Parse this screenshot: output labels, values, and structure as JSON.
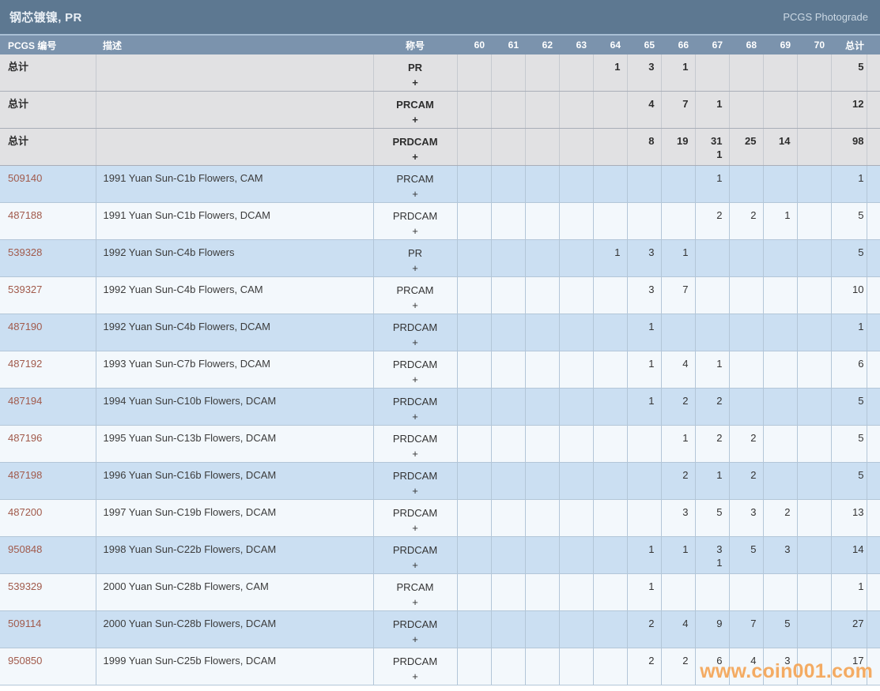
{
  "title_bar": {
    "title": "钢芯镀镍, PR",
    "right_link": "PCGS Photograde"
  },
  "colors": {
    "title_bar_bg": "#5d7891",
    "header_bg": "#7b93ad",
    "row_blue": "#cbdff2",
    "row_white": "#f3f8fc",
    "row_total_gray": "#e1e1e3",
    "pcgs_number_link": "#a15a4b",
    "watermark_orange": "#f3a04e"
  },
  "table": {
    "plus_symbol": "+",
    "headers": {
      "pcgs_no": "PCGS 编号",
      "description": "描述",
      "designation": "称号",
      "grades": [
        "60",
        "61",
        "62",
        "63",
        "64",
        "65",
        "66",
        "67",
        "68",
        "69",
        "70"
      ],
      "total": "总计"
    },
    "rows": [
      {
        "row_style": "total",
        "pcgs_no": "总计",
        "description": "",
        "designation": "PR",
        "grades": [
          "",
          "",
          "",
          "",
          "1",
          "3",
          "1",
          "",
          "",
          "",
          ""
        ],
        "total": "5"
      },
      {
        "row_style": "total",
        "pcgs_no": "总计",
        "description": "",
        "designation": "PRCAM",
        "grades": [
          "",
          "",
          "",
          "",
          "",
          "4",
          "7",
          "1",
          "",
          "",
          ""
        ],
        "total": "12"
      },
      {
        "row_style": "total",
        "pcgs_no": "总计",
        "description": "",
        "designation": "PRDCAM",
        "grades": [
          "",
          "",
          "",
          "",
          "",
          "8",
          "19",
          "31",
          "25",
          "14",
          ""
        ],
        "grades_plus": [
          "",
          "",
          "",
          "",
          "",
          "",
          "",
          "1",
          "",
          "",
          ""
        ],
        "total": "98"
      },
      {
        "row_style": "blue",
        "pcgs_no": "509140",
        "description": "1991 Yuan Sun-C1b Flowers, CAM",
        "designation": "PRCAM",
        "grades": [
          "",
          "",
          "",
          "",
          "",
          "",
          "",
          "1",
          "",
          "",
          ""
        ],
        "total": "1"
      },
      {
        "row_style": "white",
        "pcgs_no": "487188",
        "description": "1991 Yuan Sun-C1b Flowers, DCAM",
        "designation": "PRDCAM",
        "grades": [
          "",
          "",
          "",
          "",
          "",
          "",
          "",
          "2",
          "2",
          "1",
          ""
        ],
        "total": "5"
      },
      {
        "row_style": "blue",
        "pcgs_no": "539328",
        "description": "1992 Yuan Sun-C4b Flowers",
        "designation": "PR",
        "grades": [
          "",
          "",
          "",
          "",
          "1",
          "3",
          "1",
          "",
          "",
          "",
          ""
        ],
        "total": "5"
      },
      {
        "row_style": "white",
        "pcgs_no": "539327",
        "description": "1992 Yuan Sun-C4b Flowers, CAM",
        "designation": "PRCAM",
        "grades": [
          "",
          "",
          "",
          "",
          "",
          "3",
          "7",
          "",
          "",
          "",
          ""
        ],
        "total": "10"
      },
      {
        "row_style": "blue",
        "pcgs_no": "487190",
        "description": "1992 Yuan Sun-C4b Flowers, DCAM",
        "designation": "PRDCAM",
        "grades": [
          "",
          "",
          "",
          "",
          "",
          "1",
          "",
          "",
          "",
          "",
          ""
        ],
        "total": "1"
      },
      {
        "row_style": "white",
        "pcgs_no": "487192",
        "description": "1993 Yuan Sun-C7b Flowers, DCAM",
        "designation": "PRDCAM",
        "grades": [
          "",
          "",
          "",
          "",
          "",
          "1",
          "4",
          "1",
          "",
          "",
          ""
        ],
        "total": "6"
      },
      {
        "row_style": "blue",
        "pcgs_no": "487194",
        "description": "1994 Yuan Sun-C10b Flowers, DCAM",
        "designation": "PRDCAM",
        "grades": [
          "",
          "",
          "",
          "",
          "",
          "1",
          "2",
          "2",
          "",
          "",
          ""
        ],
        "total": "5"
      },
      {
        "row_style": "white",
        "pcgs_no": "487196",
        "description": "1995 Yuan Sun-C13b Flowers, DCAM",
        "designation": "PRDCAM",
        "grades": [
          "",
          "",
          "",
          "",
          "",
          "",
          "1",
          "2",
          "2",
          "",
          ""
        ],
        "total": "5"
      },
      {
        "row_style": "blue",
        "pcgs_no": "487198",
        "description": "1996 Yuan Sun-C16b Flowers, DCAM",
        "designation": "PRDCAM",
        "grades": [
          "",
          "",
          "",
          "",
          "",
          "",
          "2",
          "1",
          "2",
          "",
          ""
        ],
        "total": "5"
      },
      {
        "row_style": "white",
        "pcgs_no": "487200",
        "description": "1997 Yuan Sun-C19b Flowers, DCAM",
        "designation": "PRDCAM",
        "grades": [
          "",
          "",
          "",
          "",
          "",
          "",
          "3",
          "5",
          "3",
          "2",
          ""
        ],
        "total": "13"
      },
      {
        "row_style": "blue",
        "pcgs_no": "950848",
        "description": "1998 Yuan Sun-C22b Flowers, DCAM",
        "designation": "PRDCAM",
        "grades": [
          "",
          "",
          "",
          "",
          "",
          "1",
          "1",
          "3",
          "5",
          "3",
          ""
        ],
        "grades_plus": [
          "",
          "",
          "",
          "",
          "",
          "",
          "",
          "1",
          "",
          "",
          ""
        ],
        "total": "14"
      },
      {
        "row_style": "white",
        "pcgs_no": "539329",
        "description": "2000 Yuan Sun-C28b Flowers, CAM",
        "designation": "PRCAM",
        "grades": [
          "",
          "",
          "",
          "",
          "",
          "1",
          "",
          "",
          "",
          "",
          ""
        ],
        "total": "1"
      },
      {
        "row_style": "blue",
        "pcgs_no": "509114",
        "description": "2000 Yuan Sun-C28b Flowers, DCAM",
        "designation": "PRDCAM",
        "grades": [
          "",
          "",
          "",
          "",
          "",
          "2",
          "4",
          "9",
          "7",
          "5",
          ""
        ],
        "total": "27"
      },
      {
        "row_style": "white",
        "pcgs_no": "950850",
        "description": "1999 Yuan Sun-C25b Flowers, DCAM",
        "designation": "PRDCAM",
        "grades": [
          "",
          "",
          "",
          "",
          "",
          "2",
          "2",
          "6",
          "4",
          "3",
          ""
        ],
        "total": "17"
      }
    ]
  },
  "watermark": "www.coin001.com"
}
